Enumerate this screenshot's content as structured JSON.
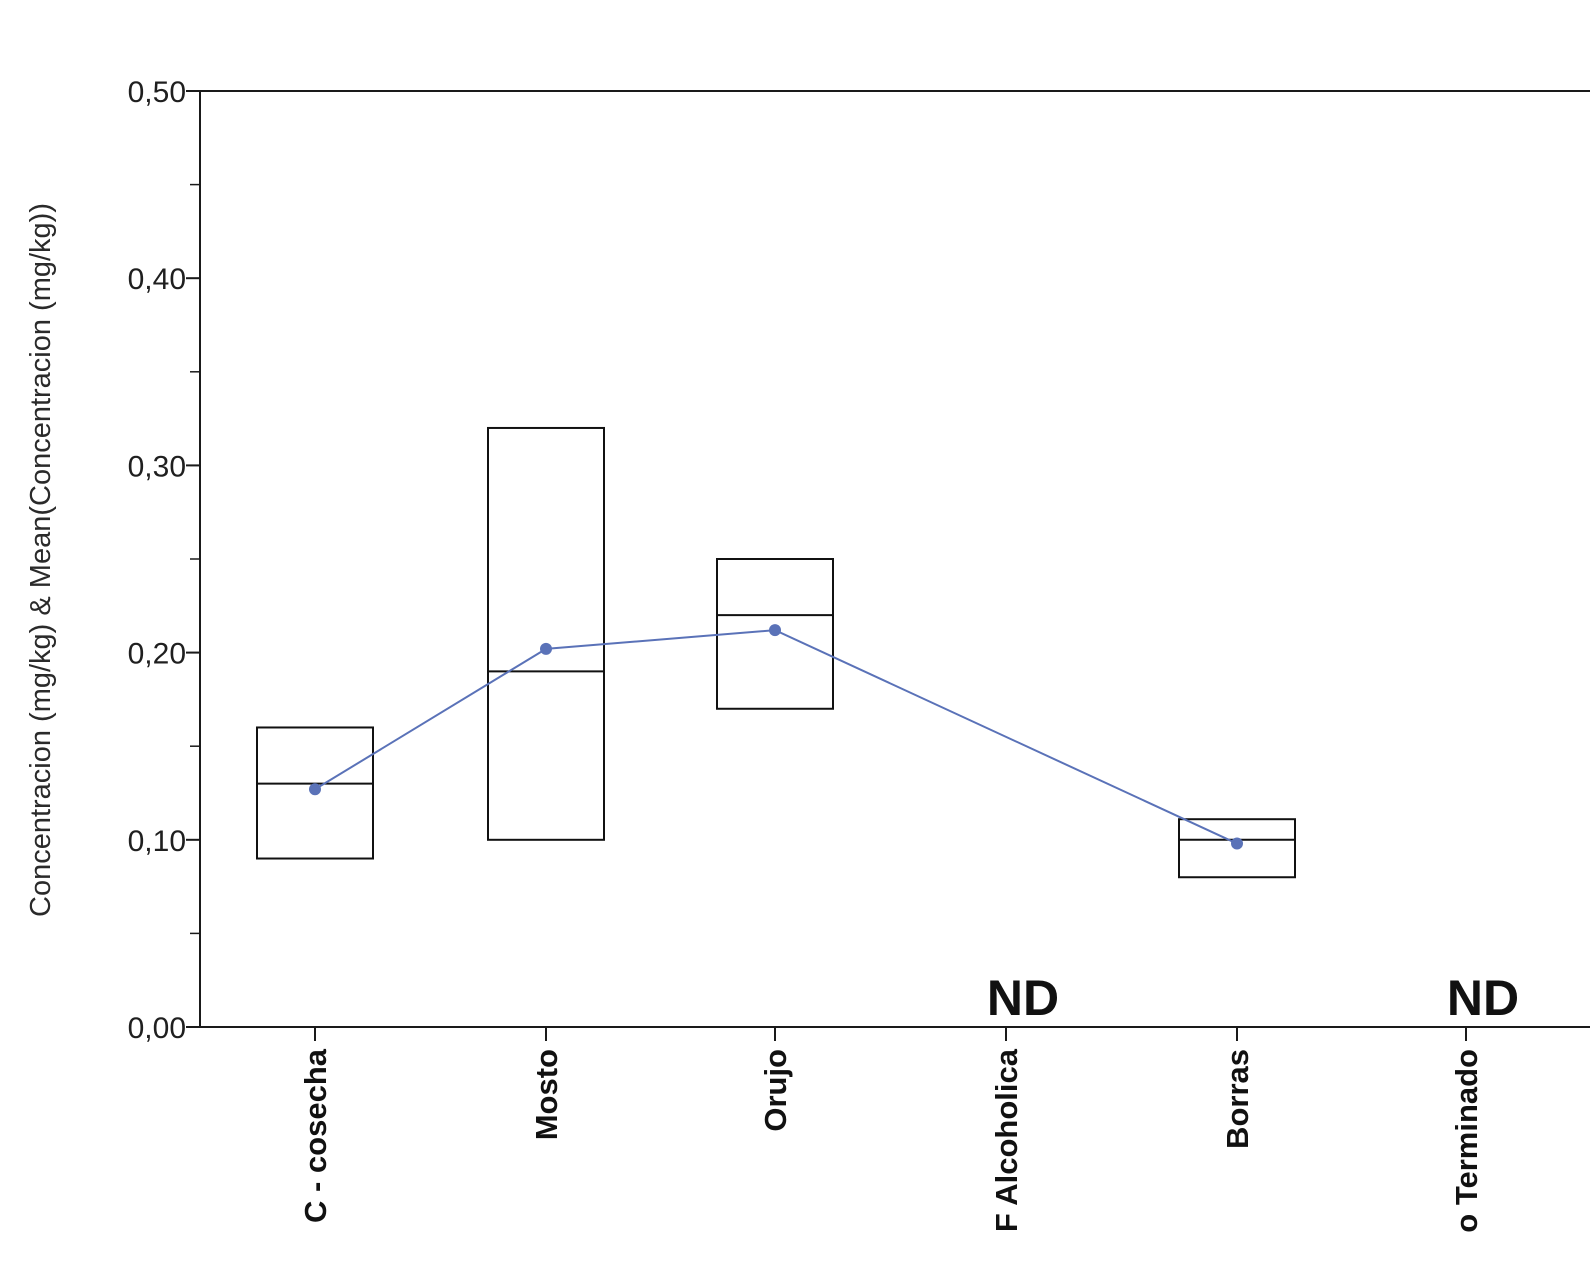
{
  "chart_data": {
    "type": "box",
    "title": "",
    "ylabel": "Concentracion (mg/kg) & Mean(Concentracion (mg/kg))",
    "xlabel": "",
    "ylim": [
      0,
      0.5
    ],
    "ytick_step_minor": 0.05,
    "yticks": [
      {
        "value": 0.0,
        "label": "0,00"
      },
      {
        "value": 0.1,
        "label": "0,10"
      },
      {
        "value": 0.2,
        "label": "0,20"
      },
      {
        "value": 0.3,
        "label": "0,30"
      },
      {
        "value": 0.4,
        "label": "0,40"
      },
      {
        "value": 0.5,
        "label": "0,50"
      }
    ],
    "categories": [
      "C - cosecha",
      "Mosto",
      "Orujo",
      "F Alcoholica",
      "Borras",
      "o Terminado"
    ],
    "boxes": [
      {
        "category": "C - cosecha",
        "low": 0.09,
        "median": 0.13,
        "high": 0.16
      },
      {
        "category": "Mosto",
        "low": 0.1,
        "median": 0.19,
        "high": 0.32
      },
      {
        "category": "Orujo",
        "low": 0.17,
        "median": 0.22,
        "high": 0.25
      },
      {
        "category": "F Alcoholica",
        "nd": true
      },
      {
        "category": "Borras",
        "low": 0.08,
        "median": 0.1,
        "high": 0.111
      },
      {
        "category": "o Terminado",
        "nd": true
      }
    ],
    "series": [
      {
        "values": [
          0.127,
          0.202,
          0.212,
          null,
          0.098,
          null
        ],
        "color": "#5a72b8",
        "marker": "circle"
      }
    ],
    "annotations": [
      {
        "category": "F Alcoholica",
        "text": "ND"
      },
      {
        "category": "o Terminado",
        "text": "ND"
      }
    ],
    "grid": false,
    "legend": "none",
    "colors": {
      "axis": "#1a1a1a",
      "box": "#111111",
      "mean_line": "#5a72b8"
    }
  }
}
